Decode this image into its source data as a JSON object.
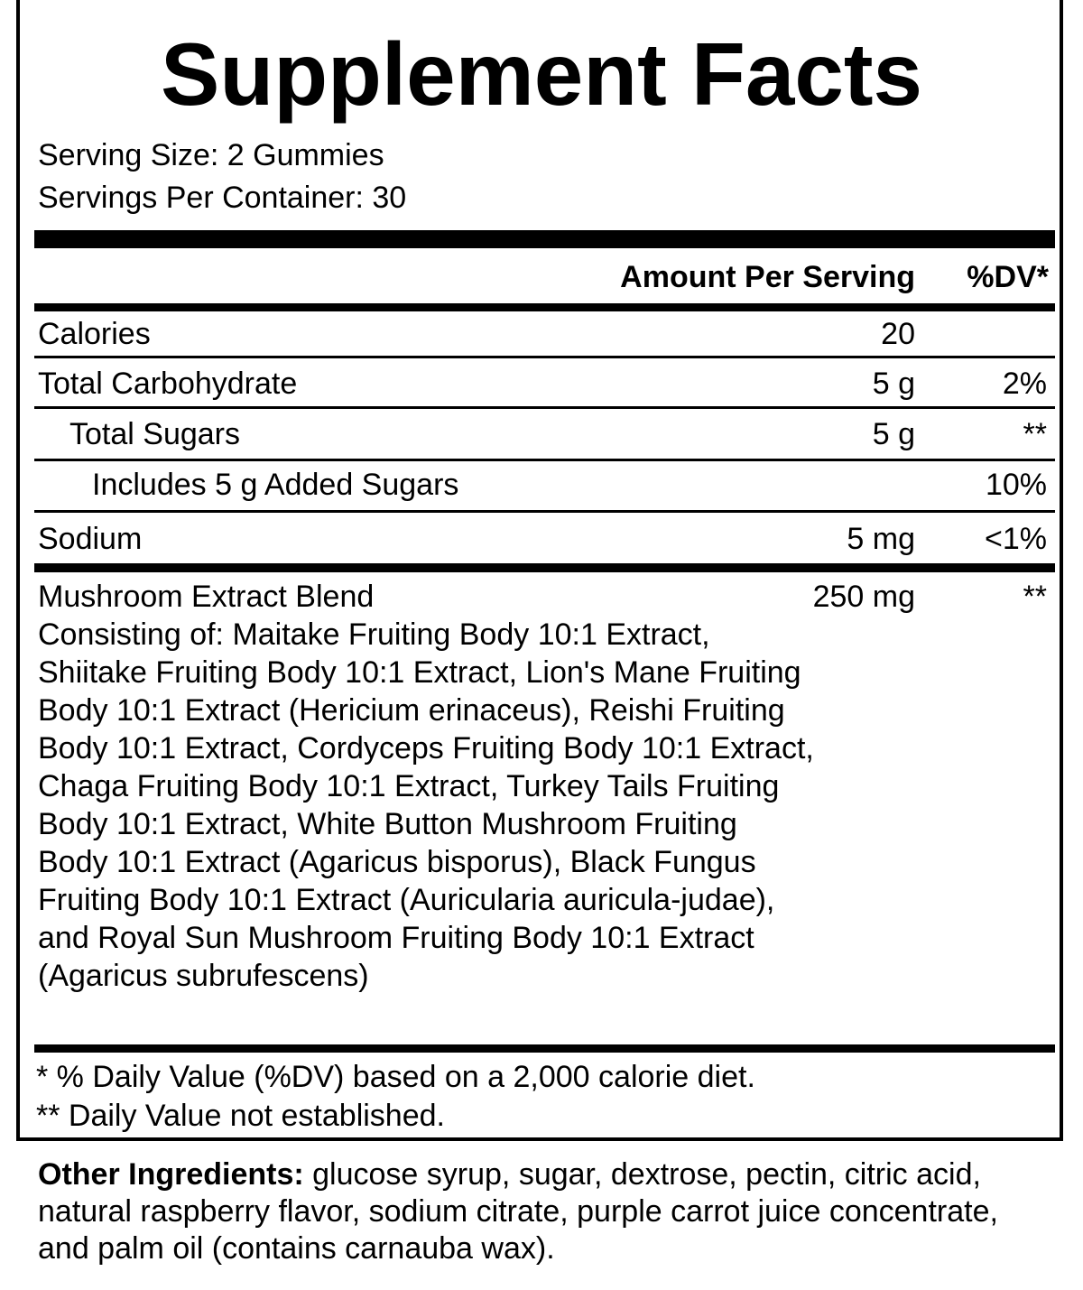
{
  "title": "Supplement Facts",
  "serving_size": "Serving Size: 2 Gummies",
  "servings_per_container": "Servings Per Container: 30",
  "header": {
    "amount": "Amount Per Serving",
    "dv": "%DV*"
  },
  "rows": [
    {
      "name": "Calories",
      "amount": "20",
      "dv": ""
    },
    {
      "name": "Total Carbohydrate",
      "amount": "5 g",
      "dv": "2%"
    },
    {
      "name": "Total Sugars",
      "amount": "5 g",
      "dv": "**"
    },
    {
      "name": "Includes 5 g Added Sugars",
      "amount": "",
      "dv": "10%"
    },
    {
      "name": "Sodium",
      "amount": "5 mg",
      "dv": "<1%"
    }
  ],
  "blend": {
    "name": "Mushroom Extract Blend",
    "amount": "250 mg",
    "dv": "**",
    "description": "Consisting of: Maitake Fruiting Body 10:1 Extract, Shiitake Fruiting Body 10:1 Extract, Lion's Mane Fruiting Body 10:1 Extract (Hericium erinaceus), Reishi Fruiting Body 10:1 Extract, Cordyceps Fruiting Body 10:1 Extract, Chaga Fruiting Body 10:1 Extract, Turkey Tails Fruiting Body 10:1 Extract, White Button Mushroom Fruiting Body 10:1 Extract (Agaricus bisporus), Black Fungus Fruiting Body 10:1 Extract (Auricularia auricula-judae), and Royal Sun Mushroom Fruiting Body 10:1 Extract (Agaricus subrufescens)"
  },
  "footnotes": [
    "* % Daily Value (%DV) based on a 2,000 calorie diet.",
    "** Daily Value not established."
  ],
  "other_ingredients": {
    "label": "Other Ingredients:",
    "text": " glucose syrup, sugar, dextrose, pectin, citric acid, natural raspberry flavor, sodium citrate, purple carrot juice concentrate, and palm oil (contains carnauba wax)."
  }
}
